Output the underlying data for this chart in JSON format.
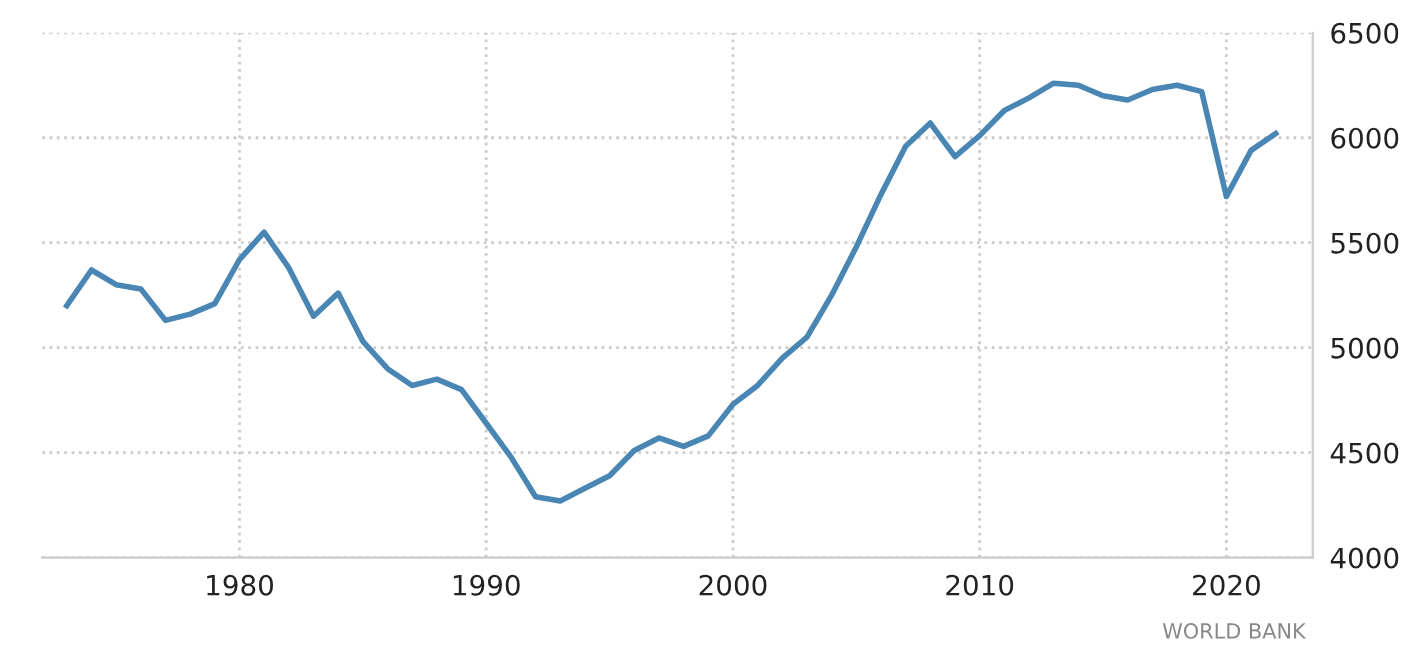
{
  "chart_data": {
    "type": "line",
    "x": [
      1973,
      1974,
      1975,
      1976,
      1977,
      1978,
      1979,
      1980,
      1981,
      1982,
      1983,
      1984,
      1985,
      1986,
      1987,
      1988,
      1989,
      1990,
      1991,
      1992,
      1993,
      1994,
      1995,
      1996,
      1997,
      1998,
      1999,
      2000,
      2001,
      2002,
      2003,
      2004,
      2005,
      2006,
      2007,
      2008,
      2009,
      2010,
      2011,
      2012,
      2013,
      2014,
      2015,
      2016,
      2017,
      2018,
      2019,
      2020,
      2021,
      2022
    ],
    "series": [
      {
        "color": "#4a86b4",
        "values": [
          5200,
          5370,
          5300,
          5280,
          5130,
          5160,
          5210,
          5420,
          5550,
          5380,
          5150,
          5260,
          5030,
          4900,
          4820,
          4850,
          4800,
          4640,
          4480,
          4290,
          4270,
          4330,
          4390,
          4510,
          4570,
          4530,
          4580,
          4730,
          4820,
          4950,
          5050,
          5250,
          5480,
          5730,
          5960,
          6070,
          5910,
          6010,
          6130,
          6190,
          6260,
          6250,
          6200,
          6180,
          6230,
          6250,
          6220,
          5720,
          5940,
          6020
        ]
      }
    ],
    "xlim": [
      1972,
      2023.5
    ],
    "xticks": [
      1980,
      1990,
      2000,
      2010,
      2020
    ],
    "ylim": [
      4000,
      6500
    ],
    "yticks": [
      4000,
      4500,
      5000,
      5500,
      6000,
      6500
    ],
    "grid": true,
    "legend": false,
    "marker": "none",
    "line_style": "solid",
    "annotations": [
      "WORLD BANK"
    ]
  }
}
